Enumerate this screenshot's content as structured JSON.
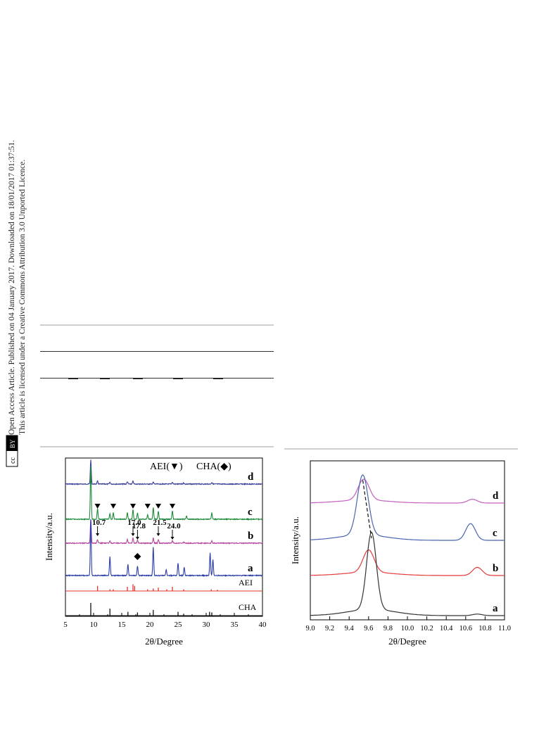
{
  "sidebar": {
    "line1": "Open Access Article. Published on 04 January 2017. Downloaded on 18/01/2017 01:37:51.",
    "line2": "This article is licensed under a Creative Commons Attribution 3.0 Unported Licence.",
    "badge_cc": "cc",
    "badge_by": "BY"
  },
  "colors": {
    "d": "#3a3f9a",
    "c": "#1e8a3a",
    "b": "#b5479e",
    "a": "#2c3ea8",
    "aei": "#e0342a",
    "cha": "#111111",
    "r_d": "#c45fc0",
    "r_c": "#4a63b0",
    "r_b": "#e43a3a",
    "r_a": "#333333"
  },
  "chart_data": [
    {
      "type": "line",
      "xlabel": "2θ/Degree",
      "ylabel": "Intensity/a.u.",
      "xlim": [
        5,
        40
      ],
      "x_ticks": [
        "5",
        "10",
        "15",
        "20",
        "25",
        "30",
        "35",
        "40"
      ],
      "legend_aei": "AEI(▼)",
      "legend_cha": "CHA(◆)",
      "series": [
        {
          "name": "d",
          "peaks": [
            [
              9.5,
              1.0
            ],
            [
              10.7,
              0.12
            ],
            [
              12.9,
              0.08
            ],
            [
              16.0,
              0.1
            ],
            [
              17.0,
              0.12
            ],
            [
              20.6,
              0.08
            ],
            [
              24.0,
              0.08
            ],
            [
              26,
              0.05
            ],
            [
              31,
              0.07
            ]
          ]
        },
        {
          "name": "c",
          "peaks": [
            [
              9.5,
              1.0
            ],
            [
              10.7,
              0.2
            ],
            [
              12.9,
              0.1
            ],
            [
              13.5,
              0.12
            ],
            [
              16.0,
              0.12
            ],
            [
              17.0,
              0.18
            ],
            [
              17.8,
              0.12
            ],
            [
              19.6,
              0.08
            ],
            [
              20.6,
              0.22
            ],
            [
              21.5,
              0.15
            ],
            [
              24.0,
              0.16
            ],
            [
              26.5,
              0.06
            ],
            [
              31,
              0.12
            ]
          ]
        },
        {
          "name": "b",
          "peaks": [
            [
              9.5,
              1.0
            ],
            [
              10.7,
              0.15
            ],
            [
              12.9,
              0.1
            ],
            [
              16.0,
              0.15
            ],
            [
              17.0,
              0.22
            ],
            [
              17.8,
              0.12
            ],
            [
              20.6,
              0.22
            ],
            [
              21.5,
              0.15
            ],
            [
              24.0,
              0.1
            ],
            [
              26,
              0.06
            ],
            [
              31,
              0.1
            ]
          ]
        },
        {
          "name": "a",
          "peaks": [
            [
              9.5,
              1.0
            ],
            [
              12.9,
              0.33
            ],
            [
              16.1,
              0.2
            ],
            [
              17.8,
              0.17
            ],
            [
              20.6,
              0.5
            ],
            [
              22.9,
              0.1
            ],
            [
              25.0,
              0.22
            ],
            [
              26.1,
              0.14
            ],
            [
              30.7,
              0.4
            ],
            [
              31.2,
              0.28
            ]
          ]
        }
      ],
      "reference_aei": [
        [
          10.7,
          0.6
        ],
        [
          12.9,
          0.2
        ],
        [
          13.5,
          0.2
        ],
        [
          16.0,
          0.5
        ],
        [
          17.0,
          0.8
        ],
        [
          17.3,
          0.6
        ],
        [
          19.6,
          0.2
        ],
        [
          20.6,
          0.3
        ],
        [
          21.5,
          0.4
        ],
        [
          23.0,
          0.2
        ],
        [
          24.0,
          0.5
        ],
        [
          26.0,
          0.2
        ],
        [
          30.9,
          0.2
        ],
        [
          32.0,
          0.15
        ]
      ],
      "reference_cha": [
        [
          9.5,
          1.0
        ],
        [
          12.9,
          0.55
        ],
        [
          16.1,
          0.3
        ],
        [
          17.8,
          0.25
        ],
        [
          20.6,
          0.45
        ],
        [
          25.0,
          0.3
        ],
        [
          26.0,
          0.15
        ],
        [
          30.6,
          0.3
        ],
        [
          31.0,
          0.25
        ]
      ],
      "series_labels": [
        "d",
        "c",
        "b",
        "a"
      ],
      "reference_labels": [
        "AEI",
        "CHA"
      ],
      "annotations": [
        "10.7",
        "17.0",
        "17.8",
        "21.5",
        "24.0"
      ],
      "annotation_x": [
        10.7,
        17.0,
        17.8,
        21.5,
        24.0
      ],
      "aei_markers_x": [
        10.7,
        13.5,
        17.0,
        19.6,
        21.5,
        24.0
      ],
      "cha_marker_x": 17.8
    },
    {
      "type": "line",
      "xlabel": "2θ/Degree",
      "ylabel": "Intensity/a.u.",
      "xlim": [
        9.0,
        11.0
      ],
      "x_ticks": [
        "9.0",
        "9.2",
        "9.4",
        "9.6",
        "9.8",
        "10.0",
        "10.2",
        "10.4",
        "10.6",
        "10.8",
        "11.0"
      ],
      "series_labels": [
        "d",
        "c",
        "b",
        "a"
      ],
      "series": [
        {
          "name": "d",
          "peak_x": 9.55,
          "peak_h": 0.55,
          "second_x": 10.67,
          "second_h": 0.1
        },
        {
          "name": "c",
          "peak_x": 9.54,
          "peak_h": 0.9,
          "second_x": 10.65,
          "second_h": 0.25
        },
        {
          "name": "b",
          "peak_x": 9.6,
          "peak_h": 0.55,
          "second_x": 10.72,
          "second_h": 0.2
        },
        {
          "name": "a",
          "peak_x": 9.63,
          "peak_h": 1.0,
          "second_x": 10.72,
          "second_h": 0.02
        }
      ]
    }
  ]
}
